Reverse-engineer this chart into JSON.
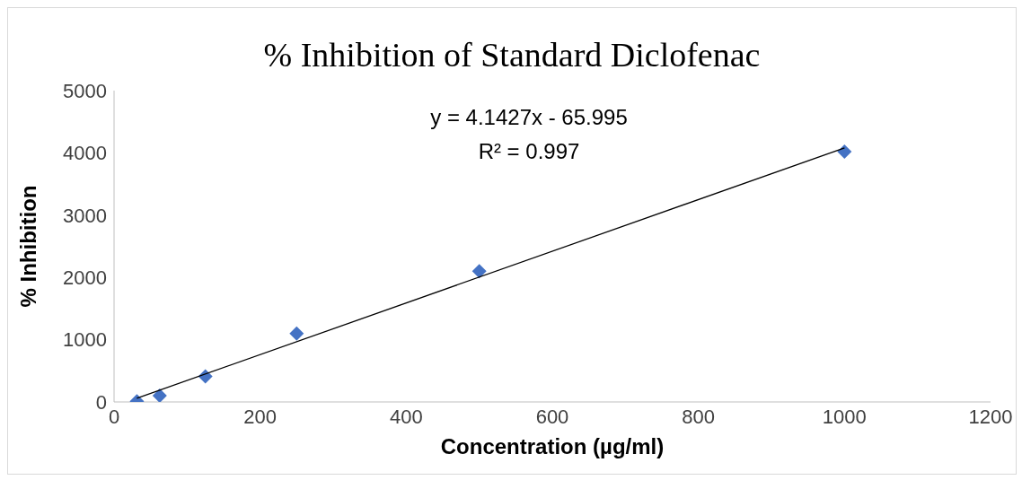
{
  "chart_data": {
    "type": "scatter",
    "title": "% Inhibition of Standard Diclofenac",
    "xlabel": "Concentration (µg/ml)",
    "ylabel": "% Inhibition",
    "x": [
      31.25,
      62.5,
      125,
      250,
      500,
      1000
    ],
    "series": [
      {
        "color": "#4472c4",
        "values": [
          10,
          100,
          410,
          1100,
          2100,
          4020
        ],
        "marker": "diamond"
      },
      {
        "type": "line",
        "color": "#000000",
        "x": [
          31.25,
          1000
        ],
        "values": [
          60,
          4080
        ],
        "marker": "none"
      }
    ],
    "xlim": [
      0,
      1200
    ],
    "xticks": [
      0,
      200,
      400,
      600,
      800,
      1000,
      1200
    ],
    "ylim": [
      0,
      5000
    ],
    "yticks": [
      0,
      1000,
      2000,
      3000,
      4000,
      5000
    ],
    "annotations": [
      "y = 4.1427x - 65.995",
      "R² = 0.997"
    ]
  }
}
